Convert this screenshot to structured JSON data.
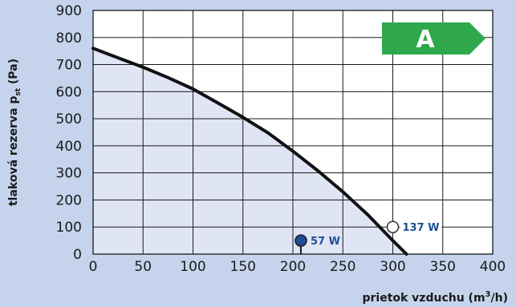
{
  "colors": {
    "background": "#c5d4ec",
    "plot_background": "#ffffff",
    "area_fill": "#dfe5f4",
    "curve": "#111111",
    "grid": "#1a1a1a",
    "badge": "#2ea84a",
    "point_power": "#1f4f96",
    "point_label": "#1f4f96"
  },
  "chart_data": {
    "type": "line",
    "xlabel_main": "prietok vzduchu (m",
    "xlabel_sup": "3",
    "xlabel_end": "/h)",
    "ylabel_main": "tlaková rezerva p",
    "ylabel_sub": "st",
    "ylabel_end": " (Pa)",
    "xlim": [
      0,
      400
    ],
    "ylim": [
      0,
      900
    ],
    "grid": true,
    "x_ticks": [
      "0",
      "50",
      "100",
      "150",
      "200",
      "250",
      "300",
      "350",
      "400"
    ],
    "y_ticks": [
      "0",
      "100",
      "200",
      "300",
      "400",
      "500",
      "600",
      "700",
      "800",
      "900"
    ],
    "curve": {
      "x": [
        0,
        25,
        50,
        75,
        100,
        125,
        150,
        175,
        200,
        225,
        250,
        275,
        300,
        315,
        330
      ],
      "y": [
        760,
        725,
        690,
        652,
        610,
        558,
        505,
        448,
        380,
        308,
        230,
        145,
        50,
        -5,
        -60
      ]
    },
    "annotations": [
      {
        "x": 208,
        "y": 50,
        "label": "57 W",
        "marker": "filled",
        "stem": true
      },
      {
        "x": 300,
        "y": 100,
        "label": "137 W",
        "marker": "open",
        "stem": false
      }
    ],
    "badge": {
      "label": "A",
      "color": "#2ea84a"
    }
  }
}
